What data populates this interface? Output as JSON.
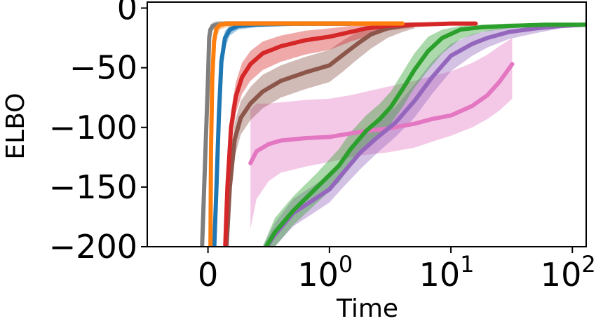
{
  "chart_data": {
    "type": "line",
    "title": "",
    "xlabel": "Time",
    "ylabel": "ELBO",
    "xscale": "symlog",
    "ylim": [
      -200,
      5
    ],
    "xlim": [
      -0.5,
      130
    ],
    "grid": false,
    "legend": "none",
    "xticks": [
      {
        "value": 0,
        "label": "0"
      },
      {
        "value": 1,
        "base": "10",
        "exp": "0"
      },
      {
        "value": 10,
        "base": "10",
        "exp": "1"
      },
      {
        "value": 100,
        "base": "10",
        "exp": "2"
      }
    ],
    "yticks": [
      {
        "value": 0,
        "label": "0"
      },
      {
        "value": -50,
        "label": "−50"
      },
      {
        "value": -100,
        "label": "−100"
      },
      {
        "value": -150,
        "label": "−150"
      },
      {
        "value": -200,
        "label": "−200"
      }
    ],
    "series": [
      {
        "color": "#e377c2",
        "x": [
          0.35,
          0.4,
          0.5,
          0.6,
          0.8,
          1.0,
          1.5,
          2.0,
          3.0,
          5.0,
          7.0,
          10,
          15,
          20,
          25,
          32
        ],
        "y": [
          -130,
          -120,
          -114,
          -111,
          -109,
          -108,
          -105,
          -103,
          -101,
          -97,
          -93,
          -90,
          -82,
          -73,
          -62,
          -47
        ],
        "lower": [
          -185,
          -160,
          -145,
          -138,
          -133,
          -129,
          -125,
          -123,
          -121,
          -117,
          -112,
          -107,
          -100,
          -93,
          -86,
          -76
        ],
        "upper": [
          -85,
          -80,
          -80,
          -79,
          -77,
          -76,
          -73,
          -70,
          -66,
          -61,
          -57,
          -53,
          -46,
          -39,
          -32,
          -25
        ]
      },
      {
        "color": "#9467bd",
        "x": [
          0.45,
          0.55,
          0.7,
          1.0,
          1.3,
          1.8,
          2.5,
          3.5,
          5.0,
          7.0,
          10,
          15,
          20,
          30,
          50,
          80,
          130
        ],
        "y": [
          -205,
          -190,
          -172,
          -152,
          -138,
          -121,
          -108,
          -96,
          -78,
          -58,
          -40,
          -30,
          -25,
          -20,
          -17,
          -15,
          -14
        ],
        "lower": [
          -205,
          -200,
          -183,
          -163,
          -150,
          -135,
          -121,
          -108,
          -92,
          -72,
          -53,
          -40,
          -33,
          -26,
          -21,
          -17,
          -15
        ],
        "upper": [
          -200,
          -180,
          -160,
          -140,
          -126,
          -108,
          -95,
          -83,
          -64,
          -45,
          -30,
          -22,
          -19,
          -16,
          -14,
          -13,
          -12
        ]
      },
      {
        "color": "#2ca02c",
        "x": [
          0.45,
          0.55,
          0.7,
          0.9,
          1.2,
          1.5,
          2.0,
          2.6,
          3.2,
          4.0,
          5.0,
          6.5,
          8.5,
          12,
          18,
          30,
          60,
          130
        ],
        "y": [
          -205,
          -188,
          -170,
          -150,
          -132,
          -118,
          -103,
          -93,
          -83,
          -68,
          -52,
          -36,
          -25,
          -18,
          -16,
          -15,
          -14,
          -14
        ],
        "lower": [
          -205,
          -200,
          -182,
          -163,
          -146,
          -132,
          -116,
          -106,
          -97,
          -83,
          -67,
          -52,
          -38,
          -26,
          -20,
          -17,
          -15,
          -15
        ],
        "upper": [
          -200,
          -176,
          -158,
          -138,
          -118,
          -104,
          -90,
          -80,
          -70,
          -54,
          -38,
          -24,
          -18,
          -15,
          -14,
          -13,
          -13,
          -13
        ]
      },
      {
        "color": "#8c564b",
        "x": [
          0.15,
          0.18,
          0.22,
          0.27,
          0.35,
          0.45,
          0.6,
          0.8,
          1.0,
          1.3,
          1.7,
          2.2,
          3.0,
          4.0,
          5.0
        ],
        "y": [
          -205,
          -150,
          -110,
          -92,
          -80,
          -70,
          -61,
          -54,
          -48,
          -39,
          -30,
          -22,
          -17,
          -15,
          -14
        ],
        "lower": [
          -205,
          -165,
          -125,
          -106,
          -94,
          -84,
          -75,
          -68,
          -62,
          -53,
          -43,
          -34,
          -25,
          -20,
          -17
        ],
        "upper": [
          -200,
          -135,
          -96,
          -78,
          -66,
          -56,
          -48,
          -41,
          -35,
          -27,
          -20,
          -15,
          -13,
          -12,
          -12
        ]
      },
      {
        "color": "#d62728",
        "x": [
          0.14,
          0.16,
          0.19,
          0.23,
          0.28,
          0.35,
          0.45,
          0.6,
          0.8,
          1.0,
          1.5,
          2.0,
          3.0,
          5.0,
          10,
          16
        ],
        "y": [
          -205,
          -150,
          -100,
          -74,
          -58,
          -47,
          -38,
          -32,
          -27,
          -24,
          -20,
          -17,
          -15,
          -14,
          -13,
          -13
        ],
        "lower": [
          -205,
          -165,
          -115,
          -88,
          -72,
          -61,
          -52,
          -45,
          -39,
          -35,
          -28,
          -24,
          -19,
          -16,
          -14,
          -14
        ],
        "upper": [
          -200,
          -135,
          -86,
          -62,
          -46,
          -36,
          -28,
          -23,
          -19,
          -17,
          -15,
          -14,
          -13,
          -12,
          -12,
          -12
        ]
      },
      {
        "color": "#1f77b4",
        "x": [
          0.05,
          0.07,
          0.09,
          0.11,
          0.14,
          0.18,
          0.25,
          0.4,
          0.7,
          1.0,
          1.5
        ],
        "y": [
          -205,
          -150,
          -90,
          -45,
          -25,
          -18,
          -15,
          -14,
          -13,
          -13,
          -13
        ],
        "lower": [
          -205,
          -165,
          -105,
          -58,
          -33,
          -23,
          -18,
          -16,
          -15,
          -15,
          -15
        ],
        "upper": [
          -200,
          -135,
          -75,
          -34,
          -19,
          -15,
          -13,
          -12,
          -12,
          -12,
          -12
        ]
      },
      {
        "color": "#7f7f7f",
        "x": [
          -0.05,
          0.0,
          0.01,
          0.02,
          0.04,
          0.07,
          0.1,
          0.15,
          0.3,
          0.6,
          1.0,
          1.5
        ],
        "y": [
          -205,
          -60,
          -25,
          -18,
          -15,
          -14,
          -13.5,
          -13,
          -13,
          -13,
          -13,
          -13
        ],
        "lower": [
          -205,
          -80,
          -35,
          -24,
          -19,
          -17,
          -16,
          -15,
          -15,
          -15,
          -15,
          -15
        ],
        "upper": [
          -200,
          -45,
          -18,
          -14,
          -12,
          -11,
          -11,
          -11,
          -11,
          -11,
          -11,
          -11
        ]
      },
      {
        "color": "#ff7f0e",
        "x": [
          0.02,
          0.025,
          0.035,
          0.05,
          0.07,
          0.1,
          0.15,
          0.3,
          0.6,
          1.0,
          2.0,
          4.0
        ],
        "y": [
          -205,
          -120,
          -60,
          -28,
          -17,
          -14,
          -13,
          -13,
          -13,
          -13,
          -13,
          -13
        ],
        "lower": [
          -205,
          -140,
          -75,
          -38,
          -24,
          -18,
          -16,
          -15,
          -15,
          -15,
          -15,
          -15
        ],
        "upper": [
          -200,
          -100,
          -45,
          -20,
          -13,
          -12,
          -11,
          -11,
          -11,
          -11,
          -11,
          -11
        ]
      }
    ]
  }
}
